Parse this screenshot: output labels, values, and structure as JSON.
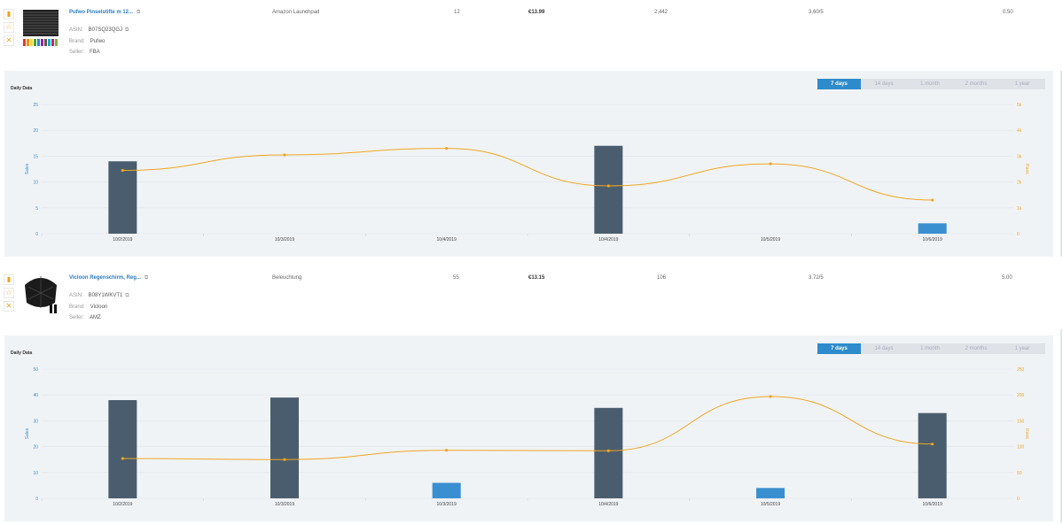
{
  "products": [
    {
      "title": "Pufwo Pinselstifte m 12...",
      "asin_label": "ASIN:",
      "asin": "B07SQ23QGJ",
      "brand_label": "Brand:",
      "brand": "Pufwo",
      "seller_label": "Seller:",
      "seller": "FBA",
      "category": "Amazon Launchpad",
      "sellers_count": "12",
      "price": "€13.99",
      "rank": "2,442",
      "rating": "3.60/5",
      "last_value": "0.50",
      "daily_label": "Daily Data",
      "tabs": [
        "7 days",
        "14 days",
        "1 month",
        "2 months",
        "1 year"
      ],
      "left_axis_label": "Sales",
      "right_axis_label": "Rank",
      "chart_data": {
        "type": "bar",
        "categories": [
          "10/2/2019",
          "10/3/2019",
          "10/4/2019",
          "10/4/2019",
          "10/5/2019",
          "10/6/2019"
        ],
        "series": [
          {
            "name": "Sales",
            "type": "bar",
            "values": [
              14,
              0,
              0,
              17,
              0,
              2
            ],
            "highlight": [
              false,
              false,
              false,
              false,
              false,
              true
            ]
          },
          {
            "name": "Rank",
            "type": "line",
            "values": [
              2450,
              3050,
              3300,
              1850,
              2700,
              1300
            ]
          }
        ],
        "y_left_ticks": [
          "0",
          "5",
          "10",
          "15",
          "20",
          "25"
        ],
        "y_left_range": [
          0,
          25
        ],
        "y_right_ticks": [
          "0",
          "1k",
          "2k",
          "3k",
          "4k",
          "5k"
        ],
        "y_right_range": [
          0,
          5000
        ],
        "grid": true
      }
    },
    {
      "title": "Vicloon Regenschirm, Reg...",
      "asin_label": "ASIN:",
      "asin": "B08Y1WKVT1",
      "brand_label": "Brand:",
      "brand": "Vicloon",
      "seller_label": "Seller:",
      "seller": "AMZ",
      "category": "Beleuchtung",
      "sellers_count": "55",
      "price": "€13.15",
      "rank": "106",
      "rating": "3.72/5",
      "last_value": "5.00",
      "daily_label": "Daily Data",
      "tabs": [
        "7 days",
        "14 days",
        "1 month",
        "2 months",
        "1 year"
      ],
      "left_axis_label": "Sales",
      "right_axis_label": "Rank",
      "chart_data": {
        "type": "bar",
        "categories": [
          "10/2/2019",
          "10/3/2019",
          "10/3/2019",
          "10/4/2019",
          "10/5/2019",
          "10/6/2019"
        ],
        "series": [
          {
            "name": "Sales",
            "type": "bar",
            "values": [
              38,
              39,
              6,
              35,
              4,
              33
            ],
            "highlight": [
              false,
              false,
              true,
              false,
              true,
              false
            ]
          },
          {
            "name": "Rank",
            "type": "line",
            "values": [
              77,
              75,
              93,
              92,
              197,
              105
            ]
          }
        ],
        "y_left_ticks": [
          "0",
          "10",
          "20",
          "30",
          "40",
          "50"
        ],
        "y_left_range": [
          0,
          50
        ],
        "y_right_ticks": [
          "0",
          "50",
          "100",
          "150",
          "200",
          "250"
        ],
        "y_right_range": [
          0,
          250
        ],
        "grid": true
      }
    }
  ],
  "colors": {
    "bar_dark": "#4a5d6e",
    "bar_highlight": "#3a8fd0",
    "line": "#f0a520",
    "left_tick": "#3a8fd0",
    "right_tick": "#f0a520",
    "tab_active": "#2e8bcb"
  },
  "icons": [
    "chart-icon",
    "star-icon",
    "close-icon",
    "copy-icon"
  ]
}
